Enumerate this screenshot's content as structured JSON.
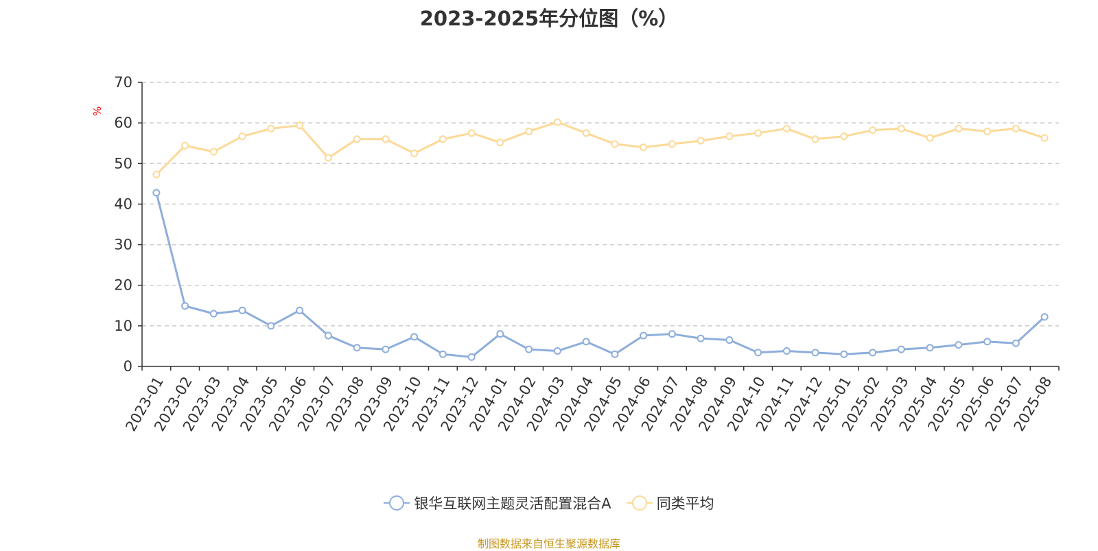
{
  "chart_data": {
    "type": "line",
    "title": "2023-2025年分位图（%）",
    "ylabel": "%",
    "ylim": [
      0,
      70
    ],
    "yticks": [
      0,
      10,
      20,
      30,
      40,
      50,
      60,
      70
    ],
    "grid": true,
    "legend_position": "bottom-center",
    "categories": [
      "2023-01",
      "2023-02",
      "2023-03",
      "2023-04",
      "2023-05",
      "2023-06",
      "2023-07",
      "2023-08",
      "2023-09",
      "2023-10",
      "2023-11",
      "2023-12",
      "2024-01",
      "2024-02",
      "2024-03",
      "2024-04",
      "2024-05",
      "2024-06",
      "2024-07",
      "2024-08",
      "2024-09",
      "2024-10",
      "2024-11",
      "2024-12",
      "2025-01",
      "2025-02",
      "2025-03",
      "2025-04",
      "2025-05",
      "2025-06",
      "2025-07",
      "2025-08"
    ],
    "series": [
      {
        "name": "银华互联网主题灵活配置混合A",
        "color": "#8eaedb",
        "values": [
          42.8,
          14.9,
          13.0,
          13.8,
          10.0,
          13.8,
          7.6,
          4.6,
          4.2,
          7.3,
          3.0,
          2.3,
          8.0,
          4.2,
          3.8,
          6.1,
          3.0,
          7.6,
          8.0,
          6.9,
          6.5,
          3.4,
          3.8,
          3.4,
          3.0,
          3.4,
          4.2,
          4.6,
          5.3,
          6.1,
          5.7,
          12.2
        ]
      },
      {
        "name": "同类平均",
        "color": "#fcd997",
        "values": [
          47.3,
          54.4,
          52.9,
          56.7,
          58.6,
          59.4,
          51.4,
          56.0,
          56.0,
          52.5,
          56.0,
          57.5,
          55.2,
          57.9,
          60.2,
          57.5,
          54.8,
          54.0,
          54.8,
          55.6,
          56.7,
          57.5,
          58.6,
          56.0,
          56.7,
          58.2,
          58.6,
          56.3,
          58.6,
          57.9,
          58.6,
          56.3
        ]
      }
    ]
  },
  "source_note": "制图数据来自恒生聚源数据库",
  "ylabel_color": "#ff0000"
}
